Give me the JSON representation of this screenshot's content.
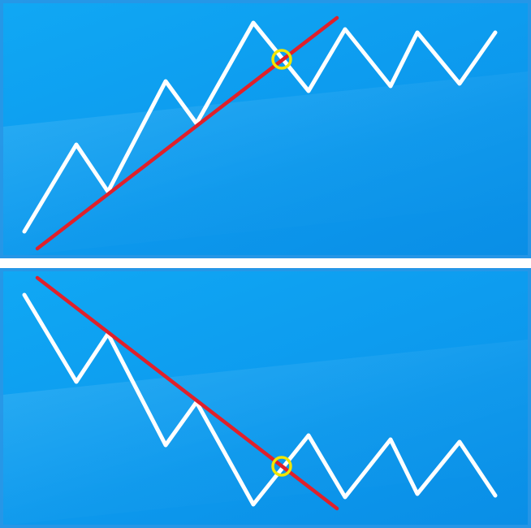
{
  "colors": {
    "background": "#0d9cef",
    "zigzag": "#ffffff",
    "trendline": "#e0202a",
    "marker": "#f2e600",
    "separator": "#ffffff"
  },
  "panels": [
    {
      "id": "uptrend",
      "zigzag_points": [
        [
          30,
          285
        ],
        [
          94,
          178
        ],
        [
          133,
          236
        ],
        [
          204,
          100
        ],
        [
          242,
          152
        ],
        [
          312,
          28
        ],
        [
          380,
          112
        ],
        [
          425,
          36
        ],
        [
          481,
          106
        ],
        [
          514,
          40
        ],
        [
          566,
          103
        ],
        [
          610,
          40
        ]
      ],
      "trendline": {
        "start": [
          46,
          306
        ],
        "end": [
          415,
          22
        ]
      },
      "breakout": {
        "center": [
          347,
          73
        ],
        "radius": 11
      }
    },
    {
      "id": "downtrend",
      "zigzag_points": [
        [
          30,
          33
        ],
        [
          94,
          140
        ],
        [
          133,
          81
        ],
        [
          204,
          218
        ],
        [
          242,
          165
        ],
        [
          312,
          291
        ],
        [
          380,
          206
        ],
        [
          425,
          282
        ],
        [
          481,
          211
        ],
        [
          514,
          278
        ],
        [
          566,
          214
        ],
        [
          610,
          280
        ]
      ],
      "trendline": {
        "start": [
          46,
          12
        ],
        "end": [
          415,
          296
        ]
      },
      "breakout": {
        "center": [
          347,
          244
        ],
        "radius": 11
      }
    }
  ]
}
